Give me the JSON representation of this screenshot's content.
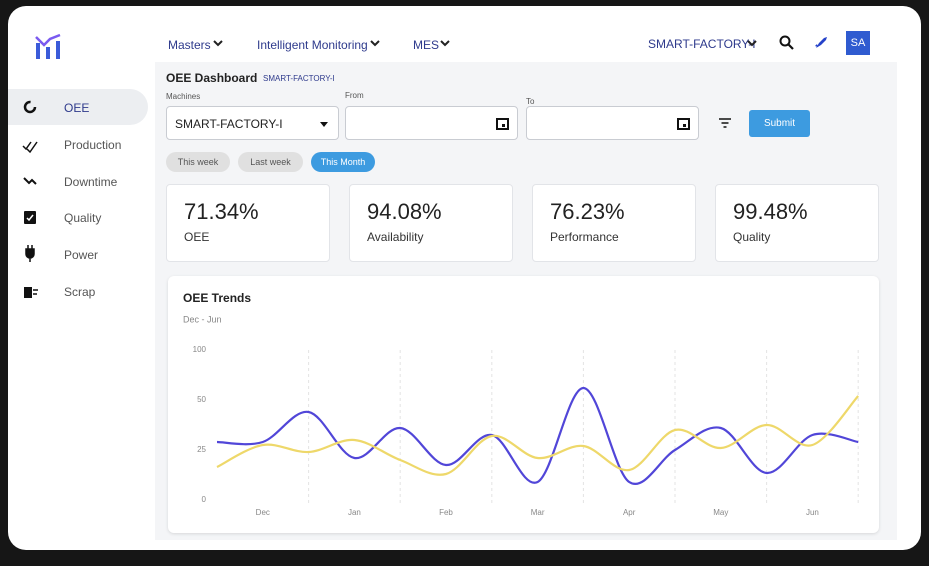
{
  "nav": {
    "menu": [
      "Masters",
      "Intelligent Monitoring",
      "MES"
    ],
    "plant": "SMART-FACTORY-I",
    "avatar": "SA"
  },
  "sidebar": [
    "OEE",
    "Production",
    "Downtime",
    "Quality",
    "Power",
    "Scrap"
  ],
  "header": {
    "title": "OEE Dashboard",
    "plant": "SMART-FACTORY-I"
  },
  "filters": {
    "machines_label": "Machines",
    "machine": "SMART-FACTORY-I",
    "from_label": "From",
    "to_label": "To",
    "submit": "Submit",
    "chips": [
      "This week",
      "Last week",
      "This Month"
    ]
  },
  "kpis": [
    {
      "value": "71.34%",
      "label": "OEE"
    },
    {
      "value": "94.08%",
      "label": "Availability"
    },
    {
      "value": "76.23%",
      "label": "Performance"
    },
    {
      "value": "99.48%",
      "label": "Quality"
    }
  ],
  "chart_data": {
    "type": "line",
    "title": "OEE Trends",
    "subtitle": "Dec - Jun",
    "categories": [
      null,
      "Dec",
      null,
      "Jan",
      null,
      "Feb",
      null,
      "Mar",
      null,
      "Apr",
      null,
      "May",
      null,
      "Jun",
      null
    ],
    "series": [
      {
        "color": "#5146d8",
        "values": [
          29,
          29,
          44,
          21,
          36,
          17.5,
          32.5,
          9,
          62,
          9,
          25,
          36,
          13.5,
          32.5,
          29
        ]
      },
      {
        "color": "#eed86a",
        "values": [
          16.5,
          27.5,
          24,
          30,
          20,
          13,
          32,
          21,
          27,
          15,
          35,
          26,
          37.5,
          27.5,
          54
        ]
      }
    ],
    "ylim": [
      0,
      100
    ],
    "yticks": [
      0,
      25,
      50,
      100
    ],
    "grid": "x",
    "smooth": true
  }
}
